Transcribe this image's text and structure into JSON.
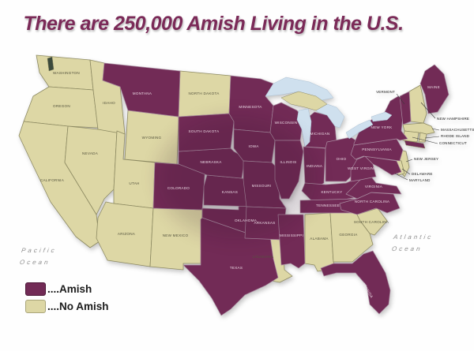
{
  "title": "There are 250,000 Amish Living in the U.S.",
  "colors": {
    "amish": "#722b56",
    "no_amish": "#ddd7a5",
    "lake": "#cfe0ee",
    "title_text": "#7b2a58",
    "amish_border": "#a98ba0",
    "no_amish_border": "#8d8a62"
  },
  "legend": {
    "items": [
      {
        "key": "amish",
        "label": "....Amish"
      },
      {
        "key": "no_amish",
        "label": "....No Amish"
      }
    ]
  },
  "oceans": {
    "pacific": {
      "line1": "Pacific",
      "line2": "Ocean"
    },
    "atlantic": {
      "line1": "Atlantic",
      "line2": "Ocean"
    }
  },
  "map": {
    "type": "choropleth",
    "states": [
      {
        "id": "WA",
        "name": "WASHINGTON",
        "amish": false
      },
      {
        "id": "OR",
        "name": "OREGON",
        "amish": false
      },
      {
        "id": "CA",
        "name": "CALIFORNIA",
        "amish": false
      },
      {
        "id": "NV",
        "name": "NEVADA",
        "amish": false
      },
      {
        "id": "ID",
        "name": "IDAHO",
        "amish": false
      },
      {
        "id": "UT",
        "name": "UTAH",
        "amish": false
      },
      {
        "id": "AZ",
        "name": "ARIZONA",
        "amish": false
      },
      {
        "id": "NM",
        "name": "NEW MEXICO",
        "amish": false
      },
      {
        "id": "WY",
        "name": "WYOMING",
        "amish": false
      },
      {
        "id": "ND",
        "name": "NORTH DAKOTA",
        "amish": false
      },
      {
        "id": "LA",
        "name": "LOUISIANA",
        "amish": false
      },
      {
        "id": "AL",
        "name": "ALABAMA",
        "amish": false
      },
      {
        "id": "GA",
        "name": "GEORGIA",
        "amish": false
      },
      {
        "id": "SC",
        "name": "SOUTH CAROLINA",
        "amish": false
      },
      {
        "id": "NH",
        "name": "NEW HAMPSHIRE",
        "amish": false
      },
      {
        "id": "MA",
        "name": "MASSACHUSETTS",
        "amish": false
      },
      {
        "id": "CT",
        "name": "CONNECTICUT",
        "amish": false
      },
      {
        "id": "RI",
        "name": "RHODE ISLAND",
        "amish": false
      },
      {
        "id": "NJ",
        "name": "NEW JERSEY",
        "amish": false
      },
      {
        "id": "DE",
        "name": "DELAWARE",
        "amish": false
      },
      {
        "id": "MT",
        "name": "MONTANA",
        "amish": true
      },
      {
        "id": "CO",
        "name": "COLORADO",
        "amish": true
      },
      {
        "id": "TX",
        "name": "TEXAS",
        "amish": true
      },
      {
        "id": "OK",
        "name": "OKLAHOMA",
        "amish": true
      },
      {
        "id": "KS",
        "name": "KANSAS",
        "amish": true
      },
      {
        "id": "NE",
        "name": "NEBRASKA",
        "amish": true
      },
      {
        "id": "SD",
        "name": "SOUTH DAKOTA",
        "amish": true
      },
      {
        "id": "MN",
        "name": "MINNESOTA",
        "amish": true
      },
      {
        "id": "IA",
        "name": "IOWA",
        "amish": true
      },
      {
        "id": "MO",
        "name": "MISSOURI",
        "amish": true
      },
      {
        "id": "AR",
        "name": "ARKANSAS",
        "amish": true
      },
      {
        "id": "WI",
        "name": "WISCONSIN",
        "amish": true
      },
      {
        "id": "IL",
        "name": "ILLINOIS",
        "amish": true
      },
      {
        "id": "MI",
        "name": "MICHIGAN",
        "amish": true
      },
      {
        "id": "IN",
        "name": "INDIANA",
        "amish": true
      },
      {
        "id": "OH",
        "name": "OHIO",
        "amish": true
      },
      {
        "id": "KY",
        "name": "KENTUCKY",
        "amish": true
      },
      {
        "id": "TN",
        "name": "TENNESSEE",
        "amish": true
      },
      {
        "id": "MS",
        "name": "MISSISSIPPI",
        "amish": true
      },
      {
        "id": "FL",
        "name": "FLORIDA",
        "amish": true
      },
      {
        "id": "NC",
        "name": "NORTH CAROLINA",
        "amish": true
      },
      {
        "id": "VA",
        "name": "VIRGINIA",
        "amish": true
      },
      {
        "id": "WV",
        "name": "WEST VIRGINIA",
        "amish": true
      },
      {
        "id": "MD",
        "name": "MARYLAND",
        "amish": true
      },
      {
        "id": "PA",
        "name": "PENNSYLVANIA",
        "amish": true
      },
      {
        "id": "NY",
        "name": "NEW YORK",
        "amish": true
      },
      {
        "id": "VT",
        "name": "VERMONT",
        "amish": true
      },
      {
        "id": "ME",
        "name": "MAINE",
        "amish": true
      }
    ]
  }
}
